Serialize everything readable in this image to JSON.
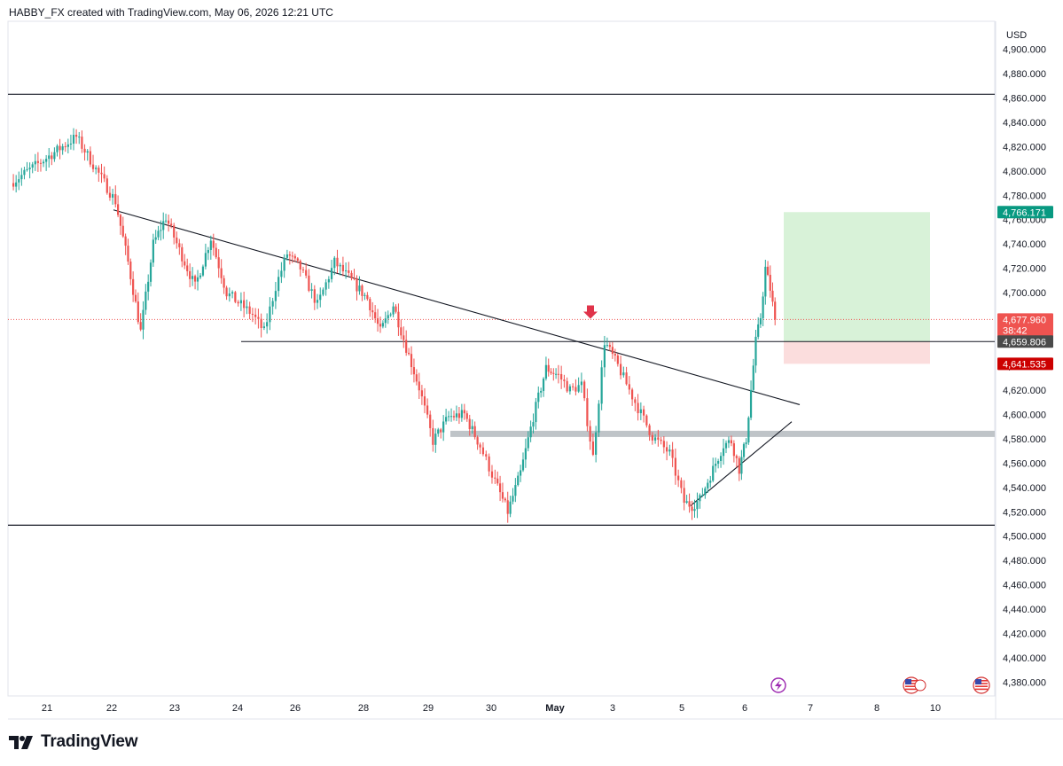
{
  "header": {
    "text": "HABBY_FX created with TradingView.com, May 06, 2026 12:21 UTC"
  },
  "brand": {
    "name": "TradingView"
  },
  "chart_data": {
    "type": "candlestick",
    "currency": "USD",
    "ylim": [
      4370,
      4910
    ],
    "y_ticks": [
      4380,
      4400,
      4420,
      4440,
      4460,
      4480,
      4500,
      4520,
      4540,
      4560,
      4580,
      4600,
      4620,
      4640,
      4660,
      4680,
      4700,
      4720,
      4740,
      4760,
      4780,
      4800,
      4820,
      4840,
      4860,
      4880,
      4900
    ],
    "x_tick_labels": [
      "21",
      "22",
      "23",
      "24",
      "26",
      "28",
      "29",
      "30",
      "May",
      "3",
      "5",
      "6",
      "7",
      "8",
      "10"
    ],
    "x_ticks_bold": [
      "May"
    ],
    "price_labels": {
      "target": "4,766.171",
      "last": "4,677.960",
      "countdown": "38:42",
      "entry": "4,659.806",
      "stop": "4,641.535"
    },
    "levels": {
      "resistance": 4863,
      "entry": 4659.806,
      "support": 4509,
      "demand_zone": 4584,
      "last": 4677.96,
      "target": 4766.171,
      "stop": 4641.535
    },
    "trendlines": [
      {
        "name": "descending",
        "from": [
          "22",
          4768
        ],
        "to": [
          "6",
          4608
        ]
      },
      {
        "name": "ascending",
        "from": [
          "5",
          4525
        ],
        "to": [
          "6",
          4594
        ]
      }
    ],
    "colors": {
      "up": "#26a69a",
      "down": "#ef5350",
      "target": "#089981",
      "stop": "#f23645",
      "entry": "#4a4a4a",
      "reward_zone": "#d8f2d8",
      "risk_zone": "#fbdddd",
      "demand_zone": "#bfc4c8",
      "signal_arrow": "#e0334a"
    },
    "anchors": [
      [
        "21",
        4790
      ],
      [
        "21",
        4828
      ],
      [
        "22",
        4775
      ],
      [
        "22",
        4725
      ],
      [
        "22",
        4668
      ],
      [
        "22",
        4740
      ],
      [
        "22",
        4762
      ],
      [
        "23",
        4735
      ],
      [
        "23",
        4705
      ],
      [
        "23",
        4745
      ],
      [
        "23",
        4700
      ],
      [
        "24",
        4690
      ],
      [
        "24",
        4682
      ],
      [
        "24",
        4668
      ],
      [
        "24",
        4705
      ],
      [
        "24",
        4732
      ],
      [
        "26",
        4720
      ],
      [
        "26",
        4690
      ],
      [
        "26",
        4725
      ],
      [
        "26",
        4710
      ],
      [
        "28",
        4695
      ],
      [
        "28",
        4668
      ],
      [
        "28",
        4690
      ],
      [
        "28",
        4655
      ],
      [
        "28",
        4622
      ],
      [
        "29",
        4578
      ],
      [
        "29",
        4598
      ],
      [
        "29",
        4600
      ],
      [
        "29",
        4574
      ],
      [
        "30",
        4545
      ],
      [
        "30",
        4520
      ],
      [
        "30",
        4552
      ],
      [
        "30",
        4598
      ],
      [
        "30",
        4638
      ],
      [
        "May",
        4632
      ],
      [
        "May",
        4620
      ],
      [
        "May",
        4624
      ],
      [
        "May",
        4565
      ],
      [
        "May",
        4660
      ],
      [
        "3",
        4640
      ],
      [
        "3",
        4610
      ],
      [
        "3",
        4582
      ],
      [
        "3",
        4568
      ],
      [
        "5",
        4528
      ],
      [
        "5",
        4525
      ],
      [
        "5",
        4530
      ],
      [
        "5",
        4545
      ],
      [
        "5",
        4560
      ],
      [
        "5",
        4575
      ],
      [
        "5",
        4578
      ],
      [
        "5",
        4555
      ],
      [
        "6",
        4580
      ],
      [
        "6",
        4620
      ],
      [
        "6",
        4660
      ],
      [
        "6",
        4680
      ],
      [
        "6",
        4720
      ],
      [
        "6",
        4703
      ],
      [
        "6",
        4677.96
      ]
    ]
  }
}
